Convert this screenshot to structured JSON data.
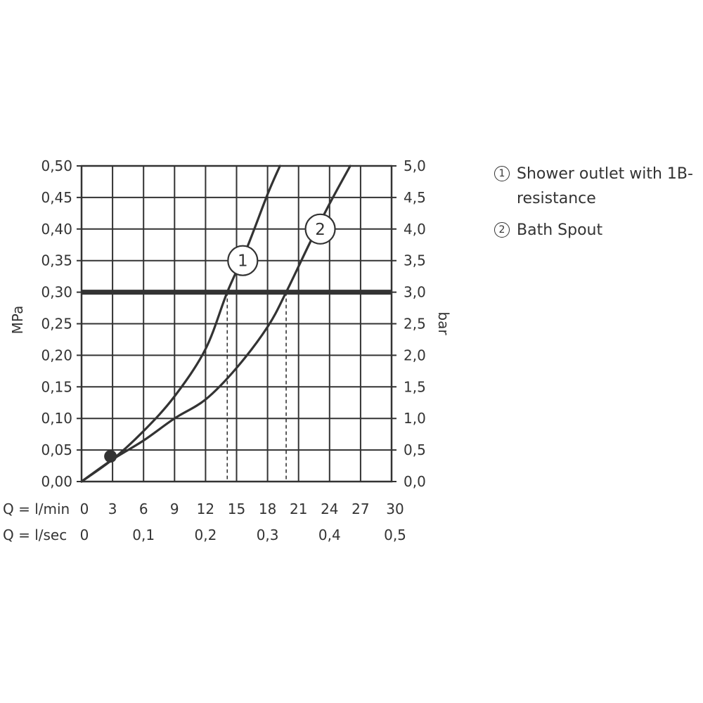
{
  "chart_data": {
    "type": "line",
    "ylabel_left": "MPa",
    "ylabel_right": "bar",
    "ylim": [
      0,
      0.5
    ],
    "y_ticks_left": [
      "0,00",
      "0,05",
      "0,10",
      "0,15",
      "0,20",
      "0,25",
      "0,30",
      "0,35",
      "0,40",
      "0,45",
      "0,50"
    ],
    "y_ticks_right": [
      "0,0",
      "0,5",
      "1,0",
      "1,5",
      "2,0",
      "2,5",
      "3,0",
      "3,5",
      "4,0",
      "4,5",
      "5,0"
    ],
    "x_ticks_lmin": [
      "0",
      "3",
      "6",
      "9",
      "12",
      "15",
      "18",
      "21",
      "24",
      "27",
      "30"
    ],
    "x_ticks_lsec": [
      "0",
      "0,1",
      "0,2",
      "0,3",
      "0,4",
      "0,5"
    ],
    "xlabel_lmin": "Q = l/min",
    "xlabel_lsec": "Q = l/sec",
    "xlim": [
      0,
      30
    ],
    "reference_line": {
      "y": 0.3
    },
    "marker_point": {
      "x": 2.8,
      "y": 0.04
    },
    "series": [
      {
        "label": "1",
        "x": [
          0,
          3,
          6,
          9,
          12,
          14.1,
          16,
          18,
          19.2
        ],
        "y": [
          0,
          0.035,
          0.08,
          0.135,
          0.21,
          0.3,
          0.37,
          0.455,
          0.5
        ],
        "dropline_x": 14.1,
        "label_pos": {
          "x": 15.6,
          "y": 0.35
        }
      },
      {
        "label": "2",
        "x": [
          0,
          3,
          6,
          9,
          12,
          15,
          18,
          19.8,
          22,
          24,
          26
        ],
        "y": [
          0,
          0.035,
          0.065,
          0.1,
          0.13,
          0.18,
          0.245,
          0.3,
          0.375,
          0.44,
          0.5
        ],
        "dropline_x": 19.8,
        "label_pos": {
          "x": 23.1,
          "y": 0.4
        }
      }
    ]
  },
  "legend": [
    {
      "num": "1",
      "text": "Shower outlet with 1B-resistance"
    },
    {
      "num": "2",
      "text": "Bath Spout"
    }
  ]
}
